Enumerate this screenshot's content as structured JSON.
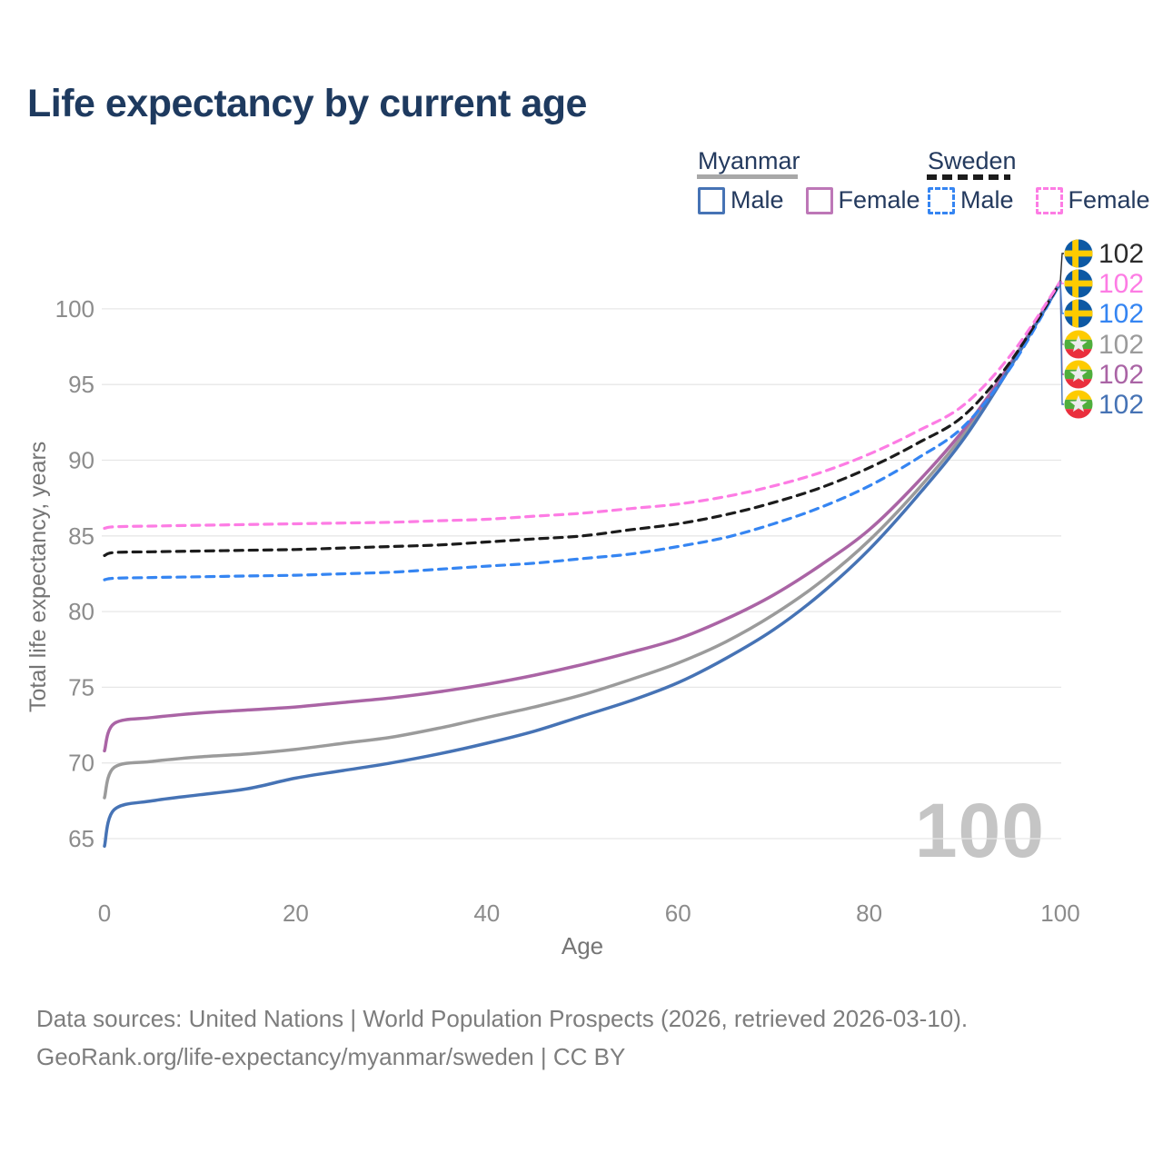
{
  "title": "Life expectancy by current age",
  "legend": {
    "groups": [
      {
        "country": "Myanmar",
        "line_style": "solid",
        "underline_color": "#a8a8a8",
        "items": [
          {
            "label": "Male",
            "color": "#4673b5"
          },
          {
            "label": "Female",
            "color": "#bd77b7"
          }
        ]
      },
      {
        "country": "Sweden",
        "line_style": "dashed",
        "underline_color": "#1c1c1c",
        "items": [
          {
            "label": "Male",
            "color": "#3585f2"
          },
          {
            "label": "Female",
            "color": "#fd7ce4"
          }
        ]
      }
    ]
  },
  "chart_data": {
    "type": "line",
    "title": "Life expectancy by current age",
    "xlabel": "Age",
    "ylabel": "Total life expectancy, years",
    "xlim": [
      0,
      100
    ],
    "ylim": [
      63,
      103
    ],
    "xticks": [
      0,
      20,
      40,
      60,
      80,
      100
    ],
    "yticks": [
      65,
      70,
      75,
      80,
      85,
      90,
      95,
      100
    ],
    "grid": "horizontal",
    "x_ages": [
      0,
      1,
      5,
      10,
      15,
      20,
      25,
      30,
      35,
      40,
      45,
      50,
      55,
      60,
      65,
      70,
      75,
      80,
      85,
      90,
      95,
      100
    ],
    "series": [
      {
        "name": "Myanmar Both sexes",
        "country": "Myanmar",
        "sex": "Both",
        "style": "solid",
        "color": "#9b9b9b",
        "values": [
          67.7,
          69.7,
          70.1,
          70.4,
          70.6,
          70.9,
          71.3,
          71.7,
          72.3,
          73.0,
          73.7,
          74.5,
          75.5,
          76.6,
          78.0,
          79.8,
          82.0,
          84.7,
          88.0,
          91.8,
          96.5,
          101.75
        ]
      },
      {
        "name": "Myanmar Female",
        "country": "Myanmar",
        "sex": "Female",
        "style": "solid",
        "color": "#aa64a5",
        "values": [
          70.8,
          72.6,
          73.0,
          73.3,
          73.5,
          73.7,
          74.0,
          74.3,
          74.7,
          75.2,
          75.8,
          76.5,
          77.3,
          78.2,
          79.5,
          81.1,
          83.1,
          85.4,
          88.5,
          92.1,
          96.6,
          101.8
        ]
      },
      {
        "name": "Myanmar Male",
        "country": "Myanmar",
        "sex": "Male",
        "style": "solid",
        "color": "#4673b5",
        "values": [
          64.5,
          66.9,
          67.5,
          67.9,
          68.3,
          69.0,
          69.5,
          70.0,
          70.6,
          71.3,
          72.1,
          73.1,
          74.1,
          75.3,
          76.9,
          78.8,
          81.2,
          84.1,
          87.6,
          91.5,
          96.4,
          101.7
        ]
      },
      {
        "name": "Sweden Male",
        "country": "Sweden",
        "sex": "Male",
        "style": "dashed",
        "color": "#3585f2",
        "values": [
          82.1,
          82.2,
          82.25,
          82.3,
          82.35,
          82.4,
          82.5,
          82.6,
          82.8,
          83.0,
          83.2,
          83.5,
          83.8,
          84.3,
          84.9,
          85.8,
          86.9,
          88.3,
          90.1,
          92.3,
          96.3,
          101.7
        ]
      },
      {
        "name": "Sweden Both sexes",
        "country": "Sweden",
        "sex": "Both",
        "style": "dashed",
        "color": "#1c1c1c",
        "values": [
          83.7,
          83.9,
          83.95,
          84.0,
          84.05,
          84.1,
          84.2,
          84.3,
          84.4,
          84.6,
          84.8,
          85.0,
          85.4,
          85.8,
          86.4,
          87.2,
          88.2,
          89.5,
          91.1,
          93.0,
          96.7,
          101.75
        ]
      },
      {
        "name": "Sweden Female",
        "country": "Sweden",
        "sex": "Female",
        "style": "dashed",
        "color": "#fd7ce4",
        "values": [
          85.5,
          85.6,
          85.65,
          85.7,
          85.75,
          85.8,
          85.85,
          85.9,
          86.0,
          86.1,
          86.3,
          86.5,
          86.8,
          87.1,
          87.6,
          88.3,
          89.2,
          90.4,
          91.9,
          93.7,
          97.1,
          101.8
        ]
      }
    ],
    "end_labels": [
      {
        "series": "Sweden Both sexes",
        "flag": "sweden",
        "value": "102",
        "color": "#2b2b2b"
      },
      {
        "series": "Sweden Female",
        "flag": "sweden",
        "value": "102",
        "color": "#fd7ce4"
      },
      {
        "series": "Sweden Male",
        "flag": "sweden",
        "value": "102",
        "color": "#3585f2"
      },
      {
        "series": "Myanmar Both sexes",
        "flag": "myanmar",
        "value": "102",
        "color": "#9b9b9b"
      },
      {
        "series": "Myanmar Female",
        "flag": "myanmar",
        "value": "102",
        "color": "#aa64a5"
      },
      {
        "series": "Myanmar Male",
        "flag": "myanmar",
        "value": "102",
        "color": "#4673b5"
      }
    ],
    "flag_colors": {
      "sweden": {
        "blue": "#0d59a4",
        "yellow": "#fecb00"
      },
      "myanmar": {
        "yellow": "#fecb00",
        "green": "#4fae3c",
        "red": "#ea2f3d",
        "star": "#ececec"
      }
    }
  },
  "watermark": "100",
  "footer": {
    "line1": "Data sources: United Nations | World Population Prospects (2026, retrieved 2026-03-10).",
    "line2": "GeoRank.org/life-expectancy/myanmar/sweden | CC BY"
  }
}
